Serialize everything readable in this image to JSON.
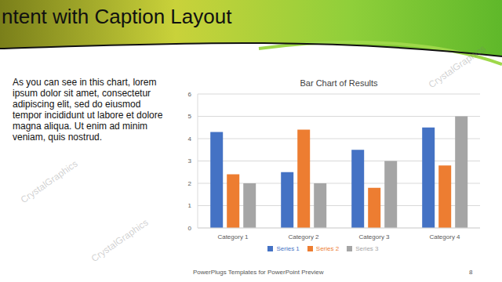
{
  "slide": {
    "title": "ntent with Caption Layout",
    "body": "As you can see in this chart, lorem ipsum dolor sit amet, consectetur adipiscing elit, sed do eiusmod tempor incididunt ut labore et dolore magna aliqua. Ut enim ad minim veniam, quis nostrud.",
    "footer": "PowerPlugs Templates for PowerPoint Preview",
    "page": 8,
    "watermark": "CrystalGraphics"
  },
  "chart_data": {
    "type": "bar",
    "title": "Bar Chart of Results",
    "categories": [
      "Category 1",
      "Category 2",
      "Category 3",
      "Category 4"
    ],
    "series": [
      {
        "name": "Series 1",
        "color": "#4472c4",
        "values": [
          4.3,
          2.5,
          3.5,
          4.5
        ]
      },
      {
        "name": "Series 2",
        "color": "#ed7d31",
        "values": [
          2.4,
          4.4,
          1.8,
          2.8
        ]
      },
      {
        "name": "Series 3",
        "color": "#a5a5a5",
        "values": [
          2,
          2,
          3,
          5
        ]
      }
    ],
    "ylim": [
      0,
      6
    ],
    "yticks": [
      0,
      1,
      2,
      3,
      4,
      5,
      6
    ],
    "grid": true,
    "legend": "bottom"
  }
}
